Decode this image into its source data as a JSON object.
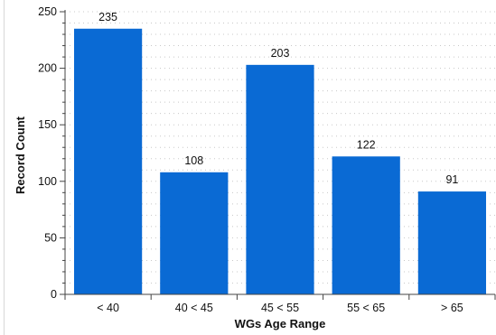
{
  "chart_data": {
    "type": "bar",
    "title": "",
    "xlabel": "WGs Age Range",
    "ylabel": "Record Count",
    "categories": [
      "< 40",
      "40 < 45",
      "45 < 55",
      "55 < 65",
      "> 65"
    ],
    "values": [
      235,
      108,
      203,
      122,
      91
    ],
    "data_labels": [
      "235",
      "108",
      "203",
      "122",
      "91"
    ],
    "ylim": [
      0,
      250
    ],
    "yticks": [
      0,
      50,
      100,
      150,
      200,
      250
    ],
    "ytick_labels": [
      "0",
      "50",
      "100",
      "150",
      "200",
      "250"
    ],
    "grid": "dotted",
    "legend": "none",
    "bar_color": "#0a6ad4"
  }
}
